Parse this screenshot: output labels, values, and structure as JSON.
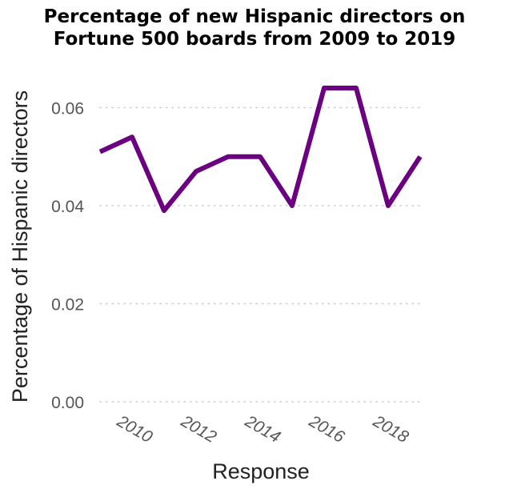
{
  "chart_data": {
    "type": "line",
    "title_lines": [
      "Percentage of new Hispanic directors on",
      "Fortune 500 boards from 2009 to 2019"
    ],
    "xlabel": "Response",
    "ylabel": "Percentage of Hispanic directors",
    "x": [
      2009,
      2010,
      2011,
      2012,
      2013,
      2014,
      2015,
      2016,
      2017,
      2018,
      2019
    ],
    "series": [
      {
        "values": [
          0.051,
          0.054,
          0.039,
          0.047,
          0.05,
          0.05,
          0.04,
          0.064,
          0.064,
          0.04,
          0.05
        ]
      }
    ],
    "xlim": [
      2009,
      2019
    ],
    "ylim": [
      0,
      0.064
    ],
    "yticks": [
      0,
      0.02,
      0.04,
      0.06
    ],
    "ytick_labels": [
      "0.00",
      "0.02",
      "0.04",
      "0.06"
    ],
    "xticks": [
      2010,
      2012,
      2014,
      2016,
      2018
    ],
    "xtick_labels": [
      "2010",
      "2012",
      "2014",
      "2016",
      "2018"
    ],
    "grid": "horizontal dotted",
    "line_color": "#6b0080",
    "grid_color": "#cccccc"
  }
}
